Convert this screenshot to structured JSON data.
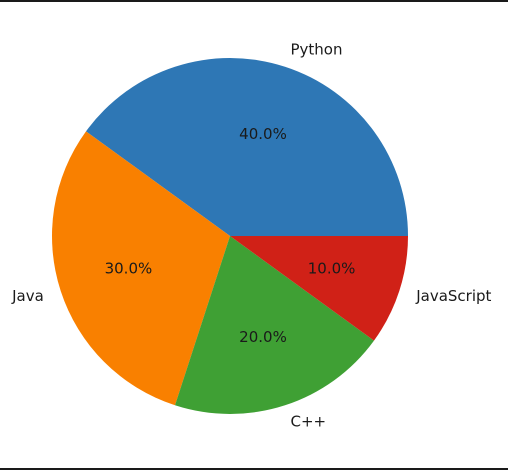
{
  "chart_data": {
    "type": "pie",
    "categories": [
      "Python",
      "Java",
      "C++",
      "JavaScript"
    ],
    "values": [
      40,
      30,
      20,
      10
    ],
    "percent_labels": [
      "40.0%",
      "30.0%",
      "20.0%",
      "10.0%"
    ],
    "colors": [
      "#2e77b5",
      "#f98000",
      "#3fa034",
      "#d02117"
    ],
    "start_angle_deg": 0,
    "direction": "counterclockwise",
    "title": ""
  }
}
